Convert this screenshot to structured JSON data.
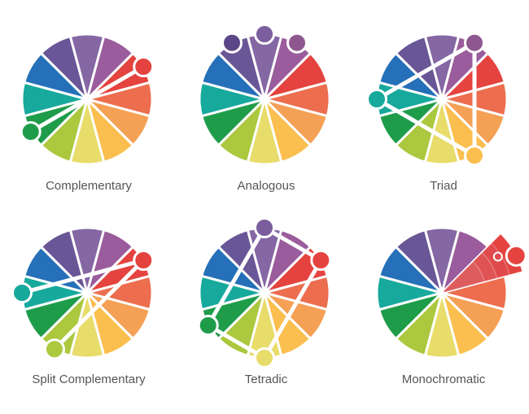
{
  "hues": [
    "#8567a4",
    "#9a5c9c",
    "#e4433f",
    "#ec6e4f",
    "#f4a055",
    "#fbbf4f",
    "#e8dc6a",
    "#abc83e",
    "#1f9c4a",
    "#17a99c",
    "#2570b8",
    "#695696"
  ],
  "marker_colors": {
    "0": "#7b5e9e",
    "1": "#8e5790",
    "11": "#5b4788"
  },
  "wheels": [
    {
      "title": "Complementary",
      "markers": [
        2,
        8
      ],
      "links": [
        [
          "center",
          2
        ],
        [
          "center",
          8
        ]
      ]
    },
    {
      "title": "Analogous",
      "markers": [
        11,
        0,
        1
      ],
      "links": []
    },
    {
      "title": "Triad",
      "markers": [
        1,
        5,
        9
      ],
      "links": [
        [
          1,
          5
        ],
        [
          5,
          9
        ],
        [
          9,
          1
        ]
      ]
    },
    {
      "title": "Split Complementary",
      "markers": [
        2,
        9,
        7
      ],
      "links": [
        [
          2,
          9
        ],
        [
          2,
          7
        ]
      ]
    },
    {
      "title": "Tetradic",
      "markers": [
        0,
        2,
        6,
        8
      ],
      "links": [
        [
          0,
          2
        ],
        [
          2,
          6
        ],
        [
          6,
          8
        ],
        [
          8,
          0
        ]
      ]
    },
    {
      "title": "Monochromatic",
      "markers": [
        2
      ],
      "links": [],
      "mono": true
    }
  ]
}
